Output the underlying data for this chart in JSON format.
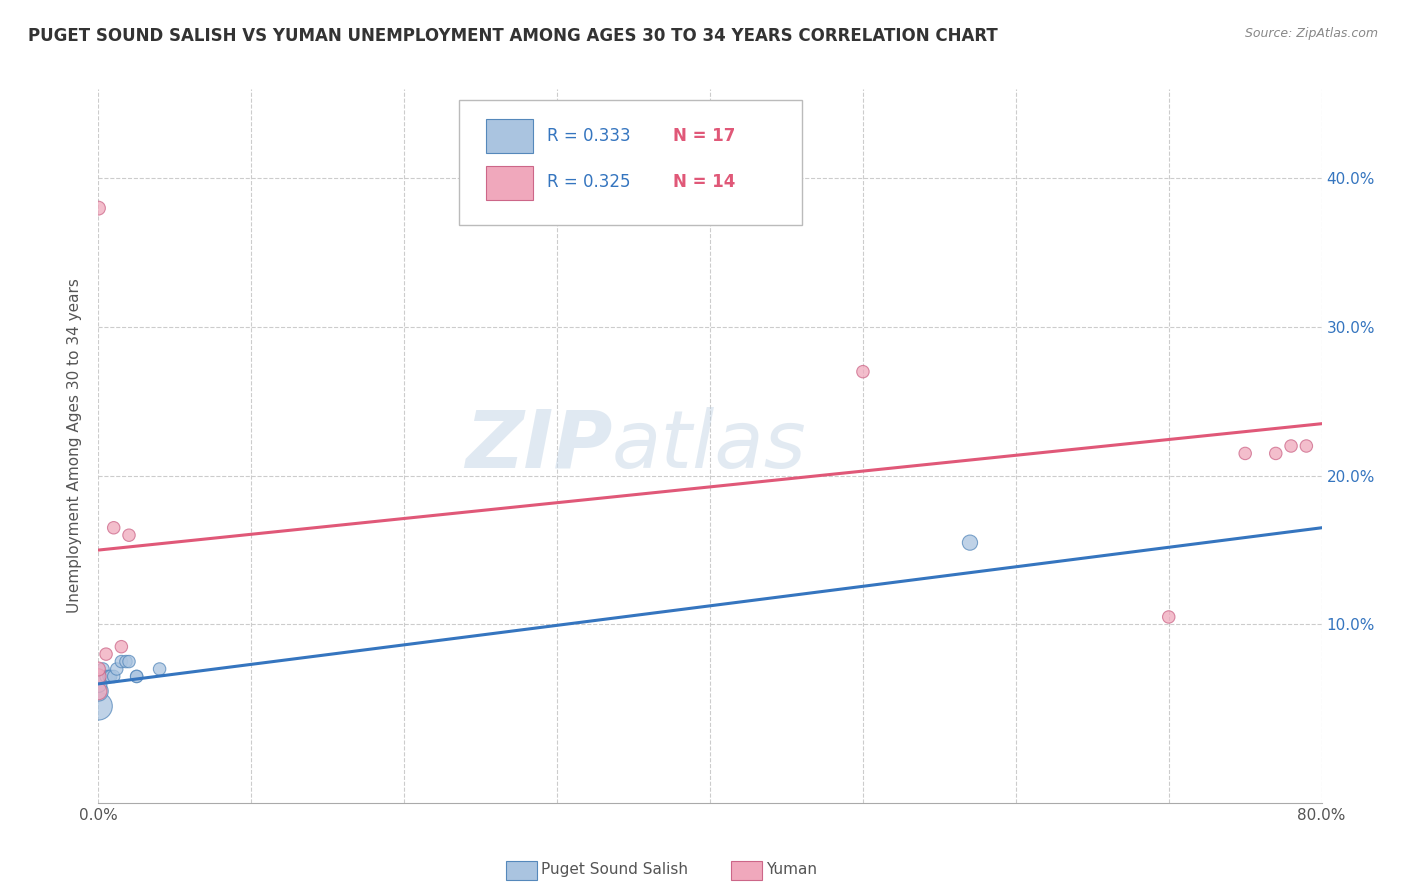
{
  "title": "PUGET SOUND SALISH VS YUMAN UNEMPLOYMENT AMONG AGES 30 TO 34 YEARS CORRELATION CHART",
  "source": "Source: ZipAtlas.com",
  "ylabel": "Unemployment Among Ages 30 to 34 years",
  "xlim": [
    0.0,
    0.8
  ],
  "ylim": [
    -0.02,
    0.46
  ],
  "yticks": [
    0.0,
    0.1,
    0.2,
    0.3,
    0.4
  ],
  "right_ytick_labels": [
    "",
    "10.0%",
    "20.0%",
    "30.0%",
    "40.0%"
  ],
  "xtick_left_label": "0.0%",
  "xtick_right_label": "80.0%",
  "blue_R": 0.333,
  "blue_N": 17,
  "pink_R": 0.325,
  "pink_N": 14,
  "puget_x": [
    0.0,
    0.0,
    0.0,
    0.0,
    0.003,
    0.005,
    0.007,
    0.008,
    0.01,
    0.012,
    0.015,
    0.018,
    0.02,
    0.025,
    0.025,
    0.04,
    0.57
  ],
  "puget_y": [
    0.045,
    0.055,
    0.06,
    0.065,
    0.07,
    0.065,
    0.065,
    0.065,
    0.065,
    0.07,
    0.075,
    0.075,
    0.075,
    0.065,
    0.065,
    0.07,
    0.155
  ],
  "puget_sizes": [
    400,
    200,
    150,
    120,
    80,
    80,
    80,
    80,
    80,
    80,
    80,
    80,
    80,
    80,
    80,
    80,
    120
  ],
  "yuman_x": [
    0.0,
    0.0,
    0.0,
    0.0,
    0.005,
    0.01,
    0.015,
    0.02,
    0.5,
    0.7,
    0.75,
    0.77,
    0.78,
    0.79
  ],
  "yuman_y": [
    0.055,
    0.065,
    0.07,
    0.38,
    0.08,
    0.165,
    0.085,
    0.16,
    0.27,
    0.105,
    0.215,
    0.215,
    0.22,
    0.22
  ],
  "yuman_sizes": [
    150,
    120,
    100,
    100,
    80,
    80,
    80,
    80,
    80,
    80,
    80,
    80,
    80,
    80
  ],
  "puget_blue_line_x": [
    0.0,
    0.8
  ],
  "puget_blue_line_y": [
    0.06,
    0.165
  ],
  "pink_line_x": [
    0.0,
    0.8
  ],
  "pink_line_y": [
    0.15,
    0.235
  ],
  "blue_scatter_color": "#aac4e0",
  "blue_edge_color": "#5588bb",
  "blue_line_color": "#3575bf",
  "pink_scatter_color": "#f0a8bc",
  "pink_edge_color": "#cc6688",
  "pink_line_color": "#e05878",
  "background_color": "#ffffff",
  "grid_color": "#cccccc",
  "watermark_zip": "ZIP",
  "watermark_atlas": "atlas",
  "title_color": "#333333",
  "title_fontsize": 12,
  "legend_R_color": "#3575bf",
  "legend_N_color": "#e05878",
  "bottom_legend_label1": "Puget Sound Salish",
  "bottom_legend_label2": "Yuman"
}
